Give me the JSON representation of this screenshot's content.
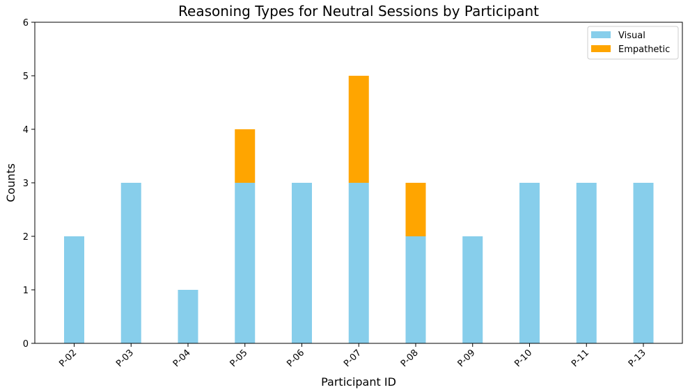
{
  "chart_data": {
    "type": "bar",
    "stacked": true,
    "title": "Reasoning Types for Neutral Sessions by Participant",
    "xlabel": "Participant ID",
    "ylabel": "Counts",
    "ylim": [
      0,
      6
    ],
    "yticks": [
      0,
      1,
      2,
      3,
      4,
      5,
      6
    ],
    "grid": false,
    "legend_position": "top-right",
    "categories": [
      "P-02",
      "P-03",
      "P-04",
      "P-05",
      "P-06",
      "P-07",
      "P-08",
      "P-09",
      "P-10",
      "P-11",
      "P-13"
    ],
    "series": [
      {
        "name": "Visual",
        "color": "#87CEEB",
        "values": [
          2,
          3,
          1,
          3,
          3,
          3,
          2,
          2,
          3,
          3,
          3
        ]
      },
      {
        "name": "Empathetic",
        "color": "#FFA500",
        "values": [
          0,
          0,
          0,
          1,
          0,
          2,
          1,
          0,
          0,
          0,
          0
        ]
      }
    ]
  }
}
